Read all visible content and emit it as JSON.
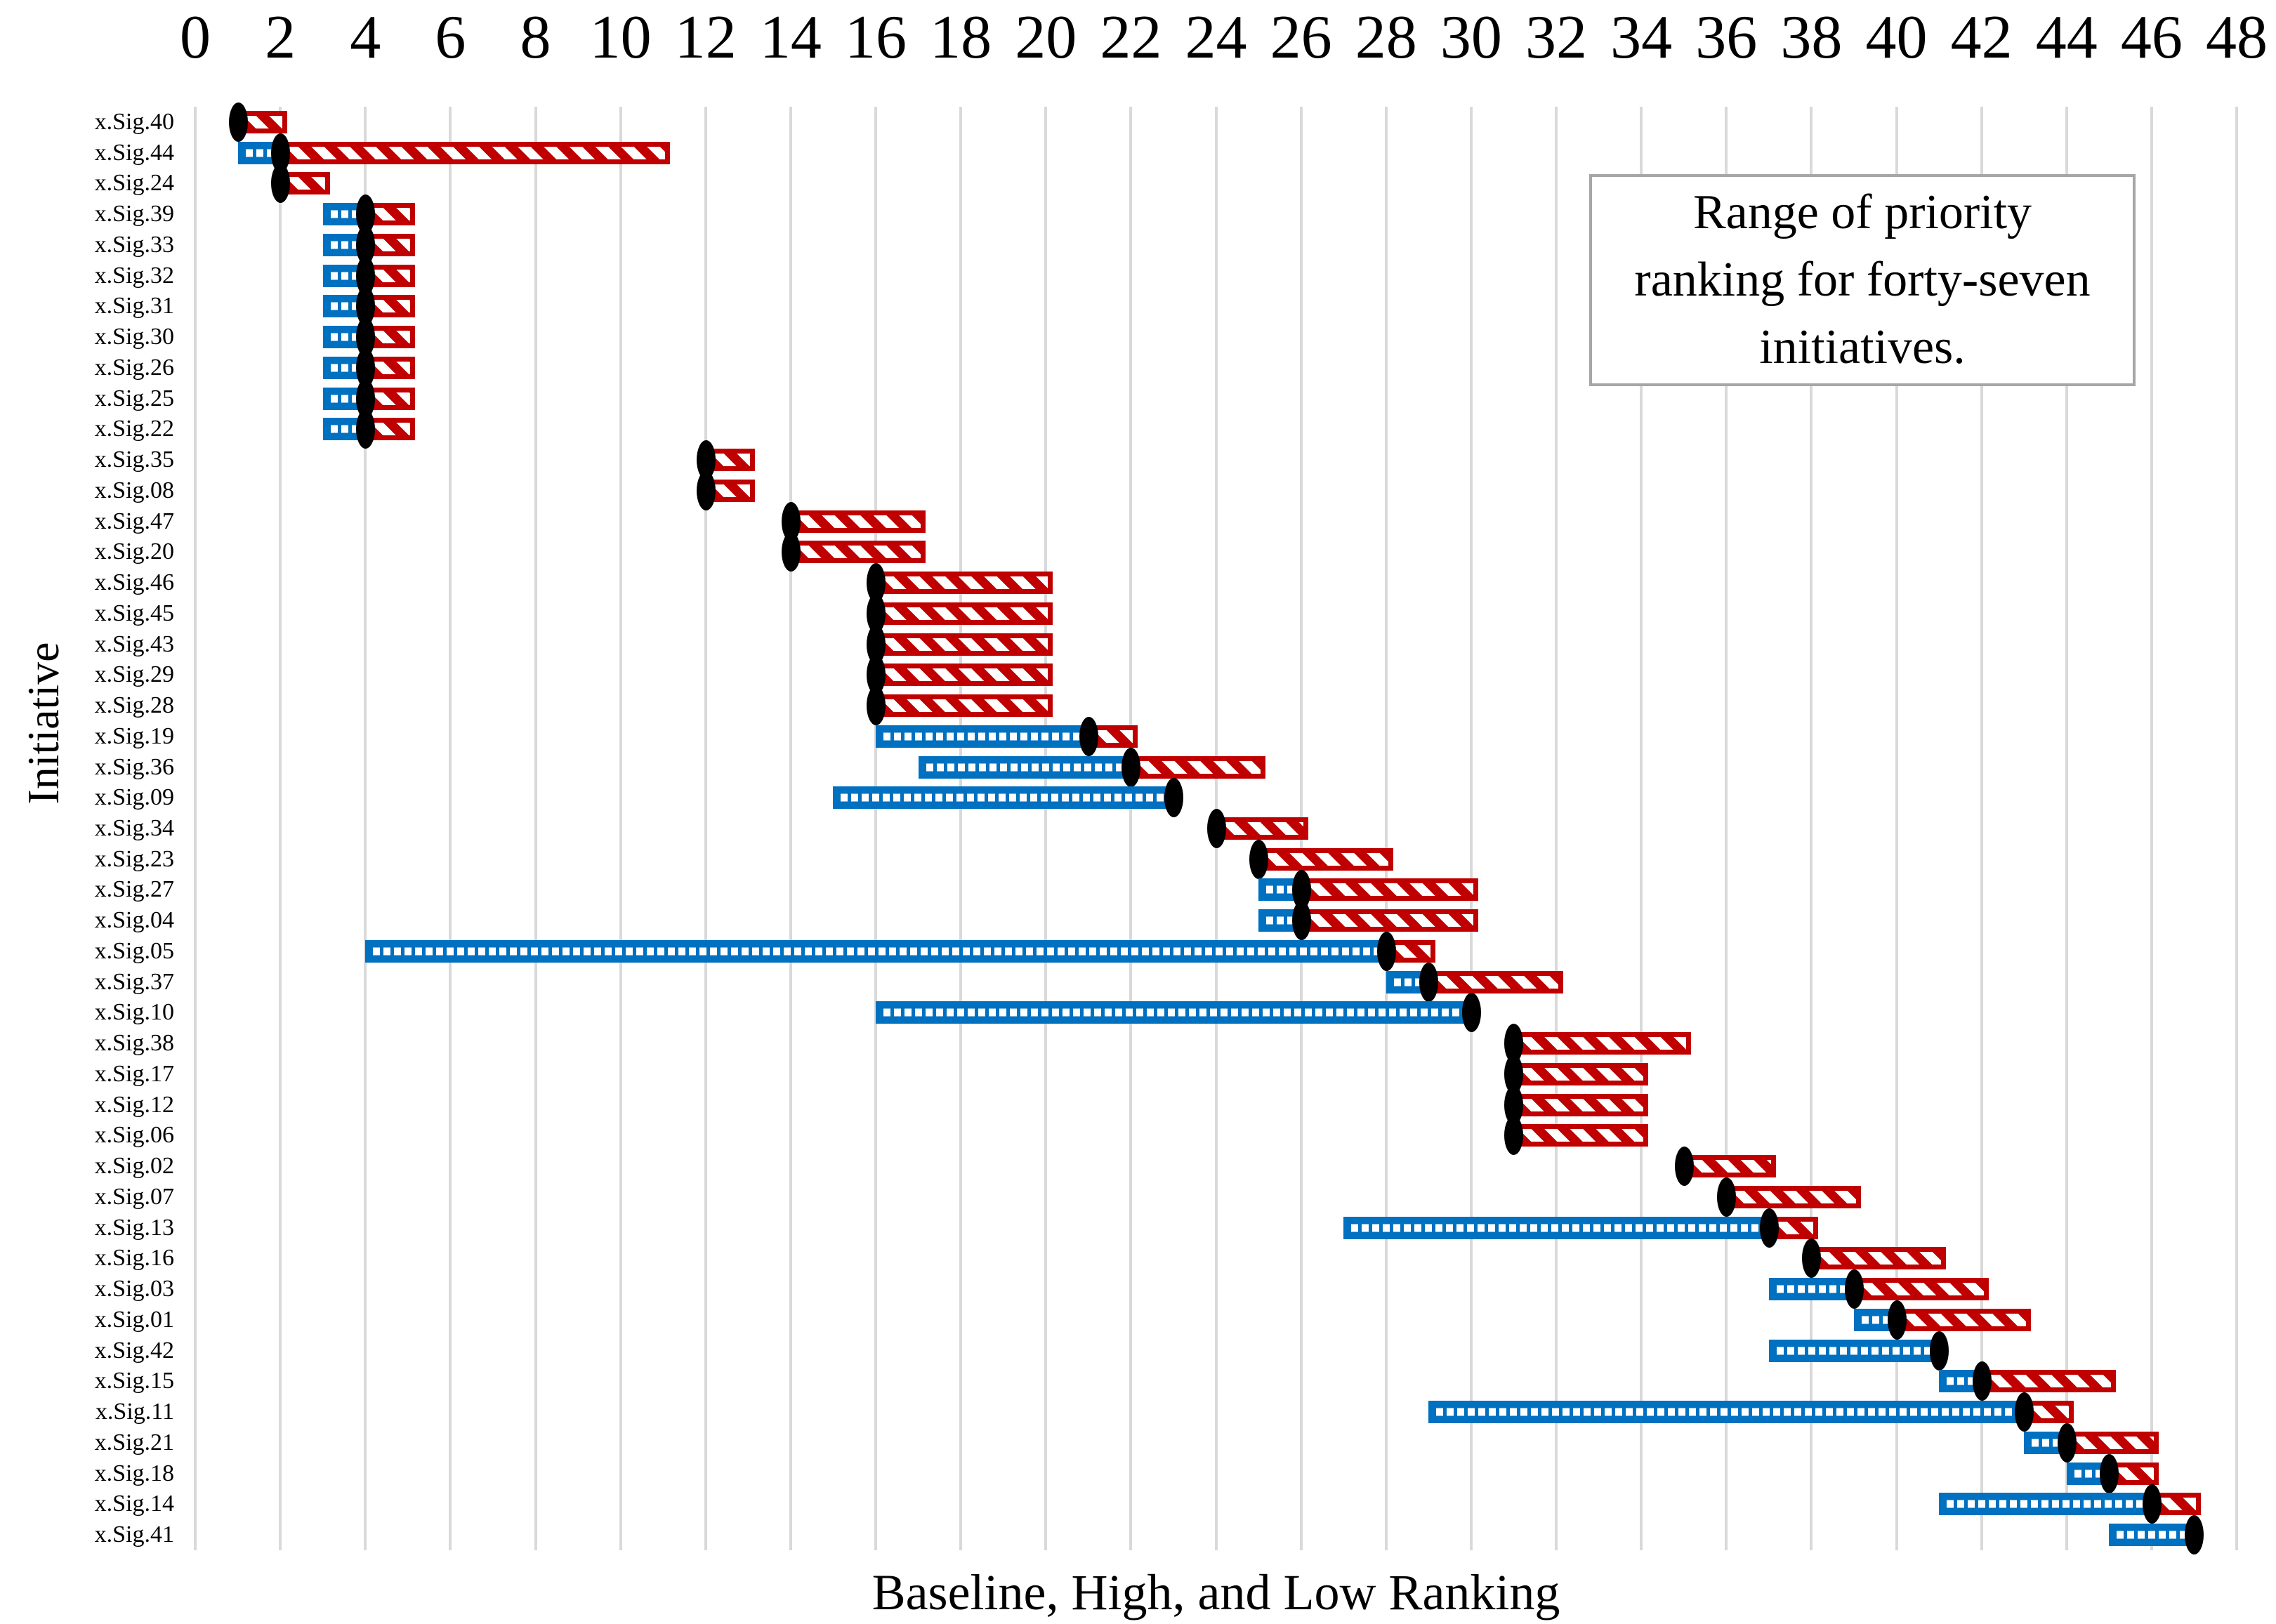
{
  "annotation": "Range of priority ranking for forty-seven initiatives.",
  "x_axis_title": "Baseline, High, and Low Ranking",
  "y_axis_title": "Initiative",
  "colors": {
    "high_bar": "#C00000",
    "low_bar": "#0070C0",
    "baseline_marker": "#000000",
    "gridline": "#D9D9D9",
    "annotation_border": "#A6A6A6"
  },
  "chart_data": {
    "type": "bar",
    "subtype": "horizontal-floating-range",
    "title": "Range of priority ranking for forty-seven initiatives.",
    "xlabel": "Baseline, High, and Low Ranking",
    "ylabel": "Initiative",
    "xlim": [
      0,
      48
    ],
    "x_ticks": [
      0,
      2,
      4,
      6,
      8,
      10,
      12,
      14,
      16,
      18,
      20,
      22,
      24,
      26,
      28,
      30,
      32,
      34,
      36,
      38,
      40,
      42,
      44,
      46,
      48
    ],
    "grid": true,
    "legend": "none",
    "series_semantics": {
      "blue_bar": "range from low ranking to baseline",
      "red_bar": "range from baseline to high ranking",
      "black_marker": "baseline ranking"
    },
    "rows": [
      {
        "initiative": "x.Sig.40",
        "low": 1,
        "baseline": 1,
        "high": 2
      },
      {
        "initiative": "x.Sig.44",
        "low": 1,
        "baseline": 2,
        "high": 11
      },
      {
        "initiative": "x.Sig.24",
        "low": 2,
        "baseline": 2,
        "high": 3
      },
      {
        "initiative": "x.Sig.39",
        "low": 3,
        "baseline": 4,
        "high": 5
      },
      {
        "initiative": "x.Sig.33",
        "low": 3,
        "baseline": 4,
        "high": 5
      },
      {
        "initiative": "x.Sig.32",
        "low": 3,
        "baseline": 4,
        "high": 5
      },
      {
        "initiative": "x.Sig.31",
        "low": 3,
        "baseline": 4,
        "high": 5
      },
      {
        "initiative": "x.Sig.30",
        "low": 3,
        "baseline": 4,
        "high": 5
      },
      {
        "initiative": "x.Sig.26",
        "low": 3,
        "baseline": 4,
        "high": 5
      },
      {
        "initiative": "x.Sig.25",
        "low": 3,
        "baseline": 4,
        "high": 5
      },
      {
        "initiative": "x.Sig.22",
        "low": 3,
        "baseline": 4,
        "high": 5
      },
      {
        "initiative": "x.Sig.35",
        "low": 12,
        "baseline": 12,
        "high": 13
      },
      {
        "initiative": "x.Sig.08",
        "low": 12,
        "baseline": 12,
        "high": 13
      },
      {
        "initiative": "x.Sig.47",
        "low": 14,
        "baseline": 14,
        "high": 17
      },
      {
        "initiative": "x.Sig.20",
        "low": 14,
        "baseline": 14,
        "high": 17
      },
      {
        "initiative": "x.Sig.46",
        "low": 16,
        "baseline": 16,
        "high": 20
      },
      {
        "initiative": "x.Sig.45",
        "low": 16,
        "baseline": 16,
        "high": 20
      },
      {
        "initiative": "x.Sig.43",
        "low": 16,
        "baseline": 16,
        "high": 20
      },
      {
        "initiative": "x.Sig.29",
        "low": 16,
        "baseline": 16,
        "high": 20
      },
      {
        "initiative": "x.Sig.28",
        "low": 16,
        "baseline": 16,
        "high": 20
      },
      {
        "initiative": "x.Sig.19",
        "low": 16,
        "baseline": 21,
        "high": 22
      },
      {
        "initiative": "x.Sig.36",
        "low": 17,
        "baseline": 22,
        "high": 25
      },
      {
        "initiative": "x.Sig.09",
        "low": 15,
        "baseline": 23,
        "high": 23
      },
      {
        "initiative": "x.Sig.34",
        "low": 24,
        "baseline": 24,
        "high": 26
      },
      {
        "initiative": "x.Sig.23",
        "low": 25,
        "baseline": 25,
        "high": 28
      },
      {
        "initiative": "x.Sig.27",
        "low": 25,
        "baseline": 26,
        "high": 30
      },
      {
        "initiative": "x.Sig.04",
        "low": 25,
        "baseline": 26,
        "high": 30
      },
      {
        "initiative": "x.Sig.05",
        "low": 4,
        "baseline": 28,
        "high": 29
      },
      {
        "initiative": "x.Sig.37",
        "low": 28,
        "baseline": 29,
        "high": 32
      },
      {
        "initiative": "x.Sig.10",
        "low": 16,
        "baseline": 30,
        "high": 30
      },
      {
        "initiative": "x.Sig.38",
        "low": 31,
        "baseline": 31,
        "high": 35
      },
      {
        "initiative": "x.Sig.17",
        "low": 31,
        "baseline": 31,
        "high": 34
      },
      {
        "initiative": "x.Sig.12",
        "low": 31,
        "baseline": 31,
        "high": 34
      },
      {
        "initiative": "x.Sig.06",
        "low": 31,
        "baseline": 31,
        "high": 34
      },
      {
        "initiative": "x.Sig.02",
        "low": 35,
        "baseline": 35,
        "high": 37
      },
      {
        "initiative": "x.Sig.07",
        "low": 36,
        "baseline": 36,
        "high": 39
      },
      {
        "initiative": "x.Sig.13",
        "low": 27,
        "baseline": 37,
        "high": 38
      },
      {
        "initiative": "x.Sig.16",
        "low": 38,
        "baseline": 38,
        "high": 41
      },
      {
        "initiative": "x.Sig.03",
        "low": 37,
        "baseline": 39,
        "high": 42
      },
      {
        "initiative": "x.Sig.01",
        "low": 39,
        "baseline": 40,
        "high": 43
      },
      {
        "initiative": "x.Sig.42",
        "low": 37,
        "baseline": 41,
        "high": 41
      },
      {
        "initiative": "x.Sig.15",
        "low": 41,
        "baseline": 42,
        "high": 45
      },
      {
        "initiative": "x.Sig.11",
        "low": 29,
        "baseline": 43,
        "high": 44
      },
      {
        "initiative": "x.Sig.21",
        "low": 43,
        "baseline": 44,
        "high": 46
      },
      {
        "initiative": "x.Sig.18",
        "low": 44,
        "baseline": 45,
        "high": 46
      },
      {
        "initiative": "x.Sig.14",
        "low": 41,
        "baseline": 46,
        "high": 47
      },
      {
        "initiative": "x.Sig.41",
        "low": 45,
        "baseline": 47,
        "high": 47
      }
    ]
  }
}
